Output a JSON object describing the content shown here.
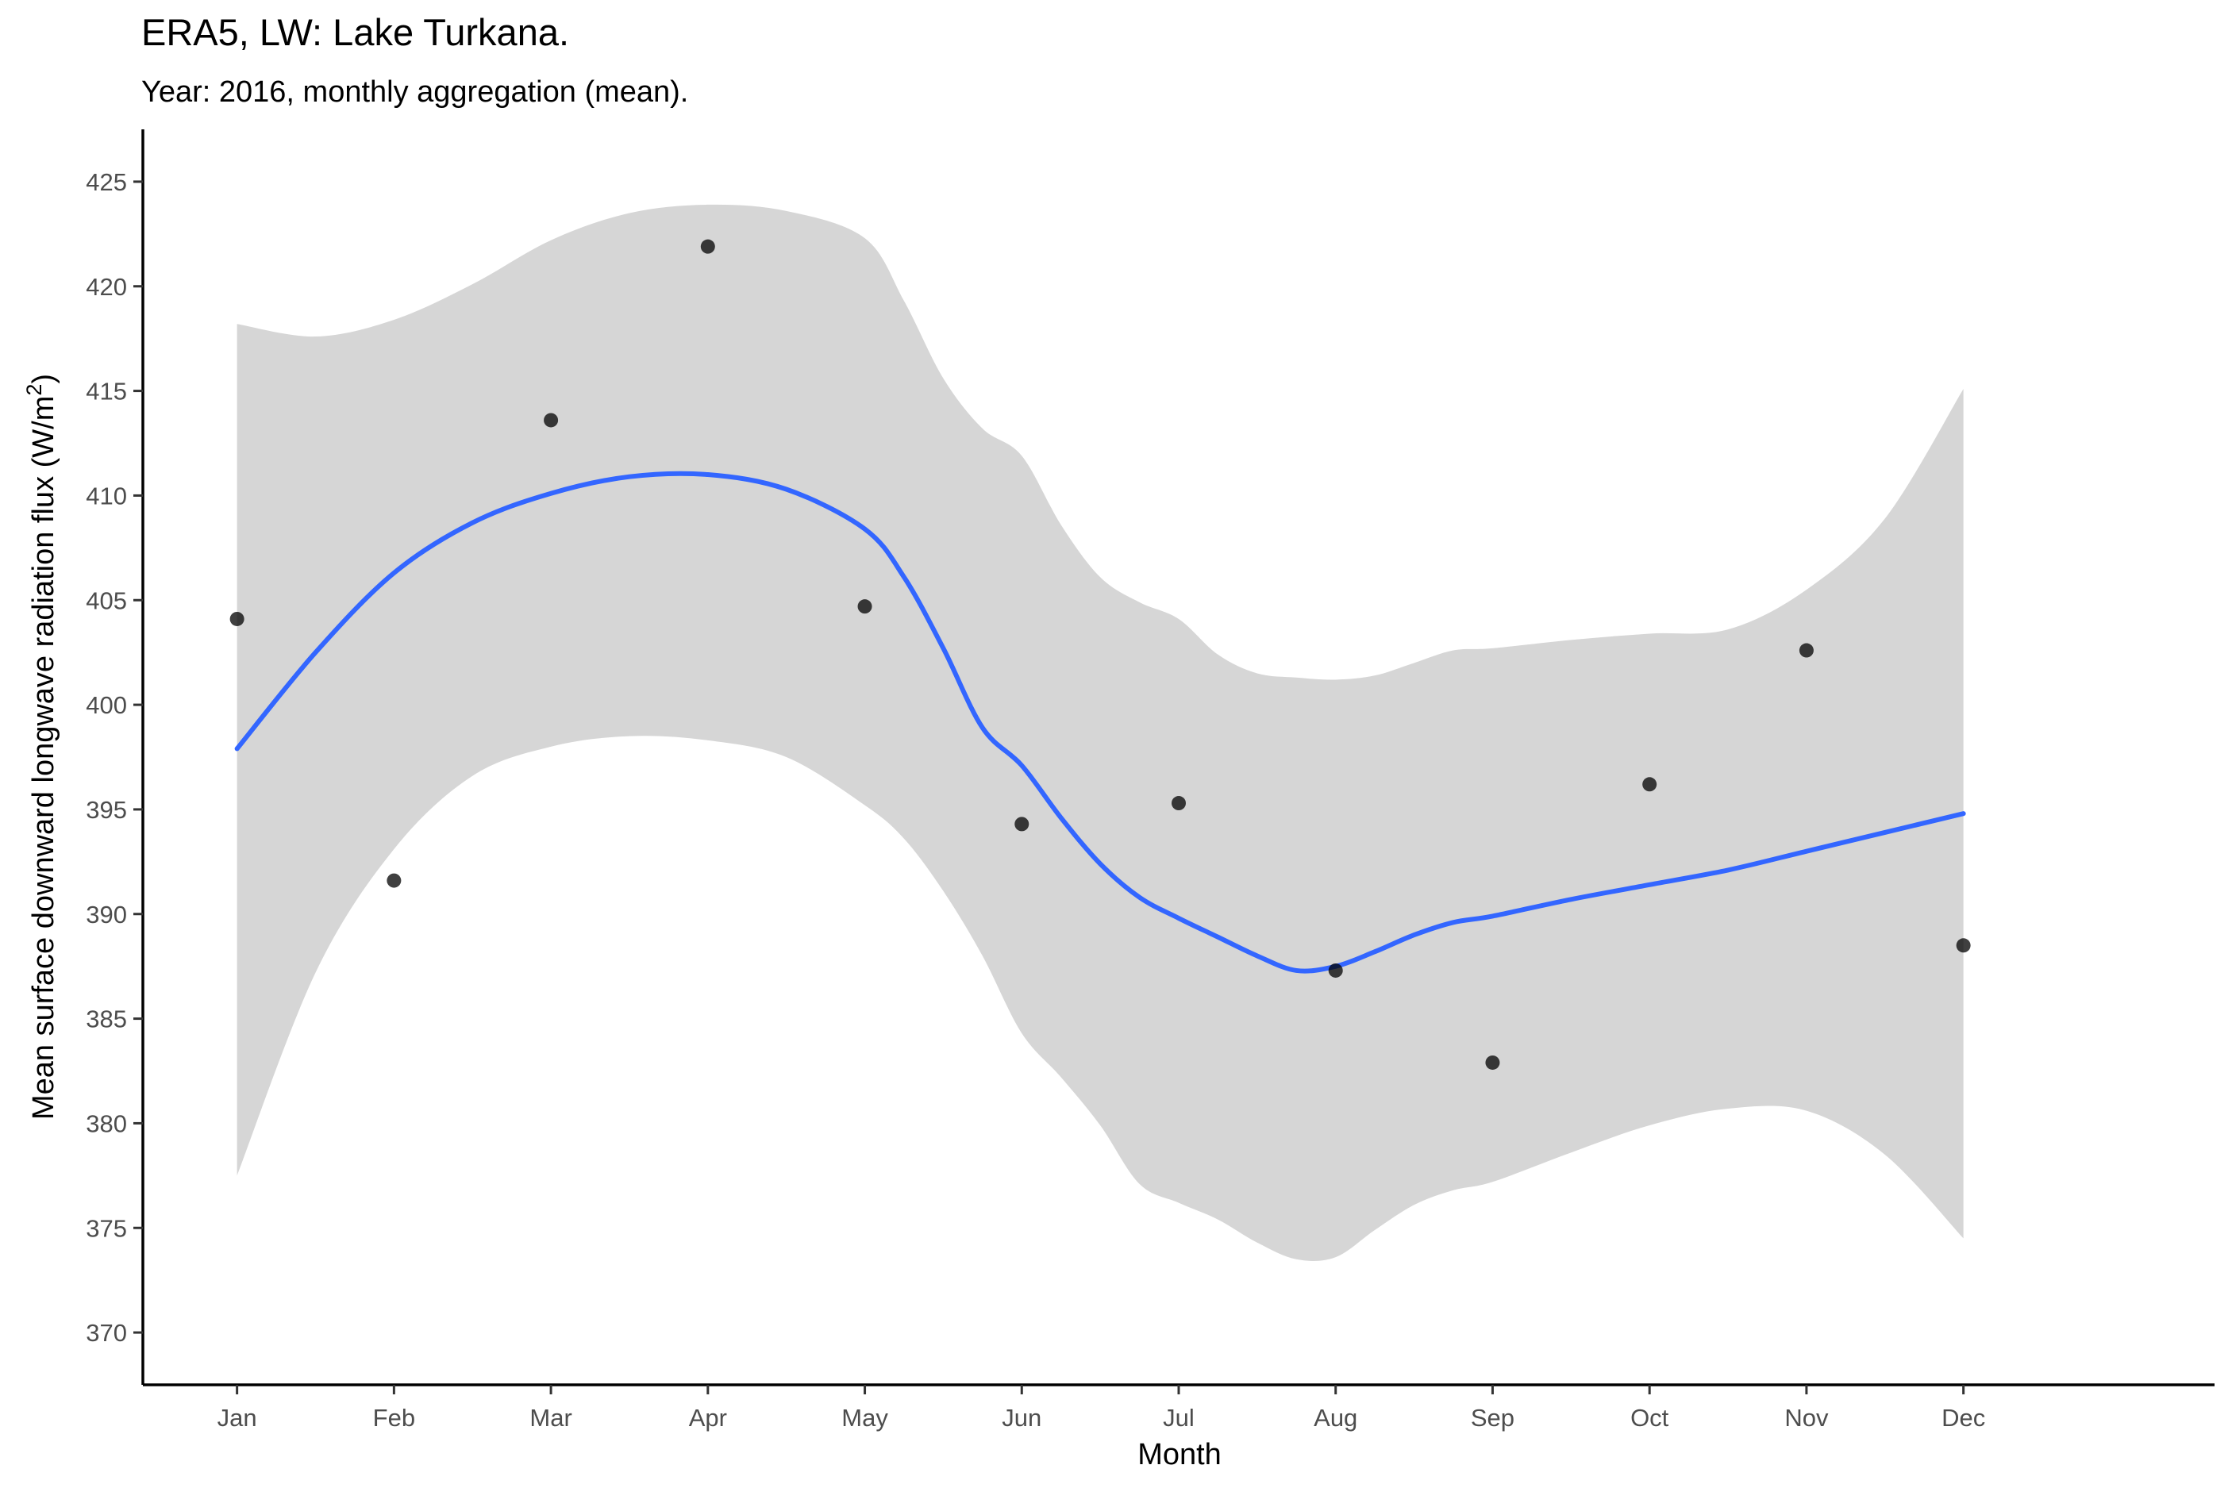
{
  "chart_data": {
    "type": "scatter",
    "title": "ERA5, LW: Lake Turkana.",
    "subtitle": "Year: 2016, monthly aggregation (mean).",
    "xlabel": "Month",
    "ylabel_text": "Mean surface downward longwave radiation flux (W/m",
    "ylabel_superscript": "2",
    "ylabel_close": ")",
    "ylim": [
      367.5,
      427.5
    ],
    "xlim": [
      0.4,
      13.6
    ],
    "grid": false,
    "legend": "none",
    "y_ticks": [
      370,
      375,
      380,
      385,
      390,
      395,
      400,
      405,
      410,
      415,
      420,
      425
    ],
    "categories": [
      "Jan",
      "Feb",
      "Mar",
      "Apr",
      "May",
      "Jun",
      "Jul",
      "Aug",
      "Sep",
      "Oct",
      "Nov",
      "Dec"
    ],
    "points": {
      "values": [
        404.1,
        391.6,
        413.6,
        421.9,
        404.7,
        394.3,
        395.3,
        387.3,
        382.9,
        396.2,
        402.6,
        388.5
      ],
      "color": "#000000"
    },
    "smooth": {
      "method": "loess",
      "color": "#3366FF",
      "ribbon_color": "#d6d6d6",
      "x": [
        1.0,
        1.5,
        2.0,
        2.5,
        3.0,
        3.5,
        4.0,
        4.5,
        5.0,
        5.25,
        5.5,
        5.75,
        6.0,
        6.25,
        6.5,
        6.75,
        7.0,
        7.25,
        7.5,
        7.75,
        8.0,
        8.25,
        8.5,
        8.75,
        9.0,
        9.5,
        10.0,
        10.5,
        11.0,
        11.5,
        12.0
      ],
      "fit": [
        397.9,
        402.5,
        406.3,
        408.7,
        410.1,
        410.9,
        411.0,
        410.3,
        408.4,
        406.1,
        402.7,
        398.9,
        397.1,
        394.6,
        392.4,
        390.8,
        389.8,
        388.9,
        388.0,
        387.3,
        387.5,
        388.2,
        389.0,
        389.6,
        389.9,
        390.7,
        391.4,
        392.1,
        393.0,
        393.9,
        394.8
      ],
      "upper": [
        418.2,
        417.6,
        418.4,
        420.1,
        422.2,
        423.5,
        423.9,
        423.6,
        422.3,
        419.3,
        415.6,
        413.2,
        411.9,
        408.6,
        406.1,
        404.9,
        404.1,
        402.4,
        401.5,
        401.3,
        401.2,
        401.4,
        402.0,
        402.6,
        402.7,
        403.1,
        403.4,
        403.6,
        405.5,
        408.9,
        415.1
      ],
      "lower": [
        377.5,
        387.2,
        393.1,
        396.6,
        398.0,
        398.5,
        398.3,
        397.5,
        395.2,
        393.6,
        391.1,
        388.0,
        384.3,
        382.2,
        379.9,
        377.1,
        376.2,
        375.4,
        374.3,
        373.5,
        373.6,
        374.9,
        376.1,
        376.8,
        377.2,
        378.6,
        379.9,
        380.7,
        380.6,
        378.5,
        374.5
      ]
    }
  }
}
